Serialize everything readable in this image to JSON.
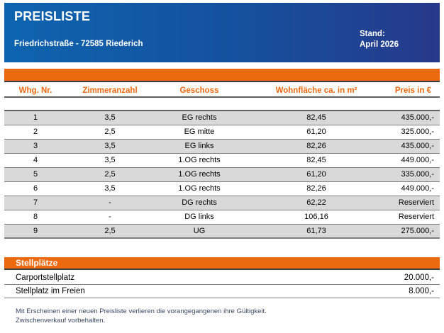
{
  "header": {
    "title": "PREISLISTE",
    "address": "Friedrichstraße - 72585 Riederich",
    "stand_label": "Stand:",
    "stand_value": "April 2026"
  },
  "colors": {
    "accent_orange": "#EB690F",
    "header_blue_left": "#0E64AF",
    "header_blue_right": "#27398B",
    "row_stripe_gray": "#D9D9D9"
  },
  "table": {
    "columns": [
      "Whg. Nr.",
      "Zimmeranzahl",
      "Geschoss",
      "Wohnfläche ca. in m²",
      "Preis in €"
    ],
    "rows": [
      [
        "1",
        "3,5",
        "EG rechts",
        "82,45",
        "435.000,-"
      ],
      [
        "2",
        "2,5",
        "EG mitte",
        "61,20",
        "325.000,-"
      ],
      [
        "3",
        "3,5",
        "EG links",
        "82,26",
        "435.000,-"
      ],
      [
        "4",
        "3,5",
        "1.OG rechts",
        "82,45",
        "449.000,-"
      ],
      [
        "5",
        "2,5",
        "1.OG rechts",
        "61,20",
        "335.000,-"
      ],
      [
        "6",
        "3,5",
        "1.OG rechts",
        "82,26",
        "449.000,-"
      ],
      [
        "7",
        "-",
        "DG rechts",
        "62,22",
        "Reserviert"
      ],
      [
        "8",
        "-",
        "DG links",
        "106,16",
        "Reserviert"
      ],
      [
        "9",
        "2,5",
        "UG",
        "61,73",
        "275.000,-"
      ]
    ]
  },
  "parking": {
    "title": "Stellplätze",
    "rows": [
      {
        "label": "Carportstellplatz",
        "price": "20.000,-"
      },
      {
        "label": "Stellplatz im Freien",
        "price": "8.000,-"
      }
    ]
  },
  "footer": {
    "line1": "Mit Erscheinen einer neuen Preisliste verlieren die vorangegangenen ihre Gültigkeit.",
    "line2": "Zwischenverkauf vorbehalten."
  }
}
